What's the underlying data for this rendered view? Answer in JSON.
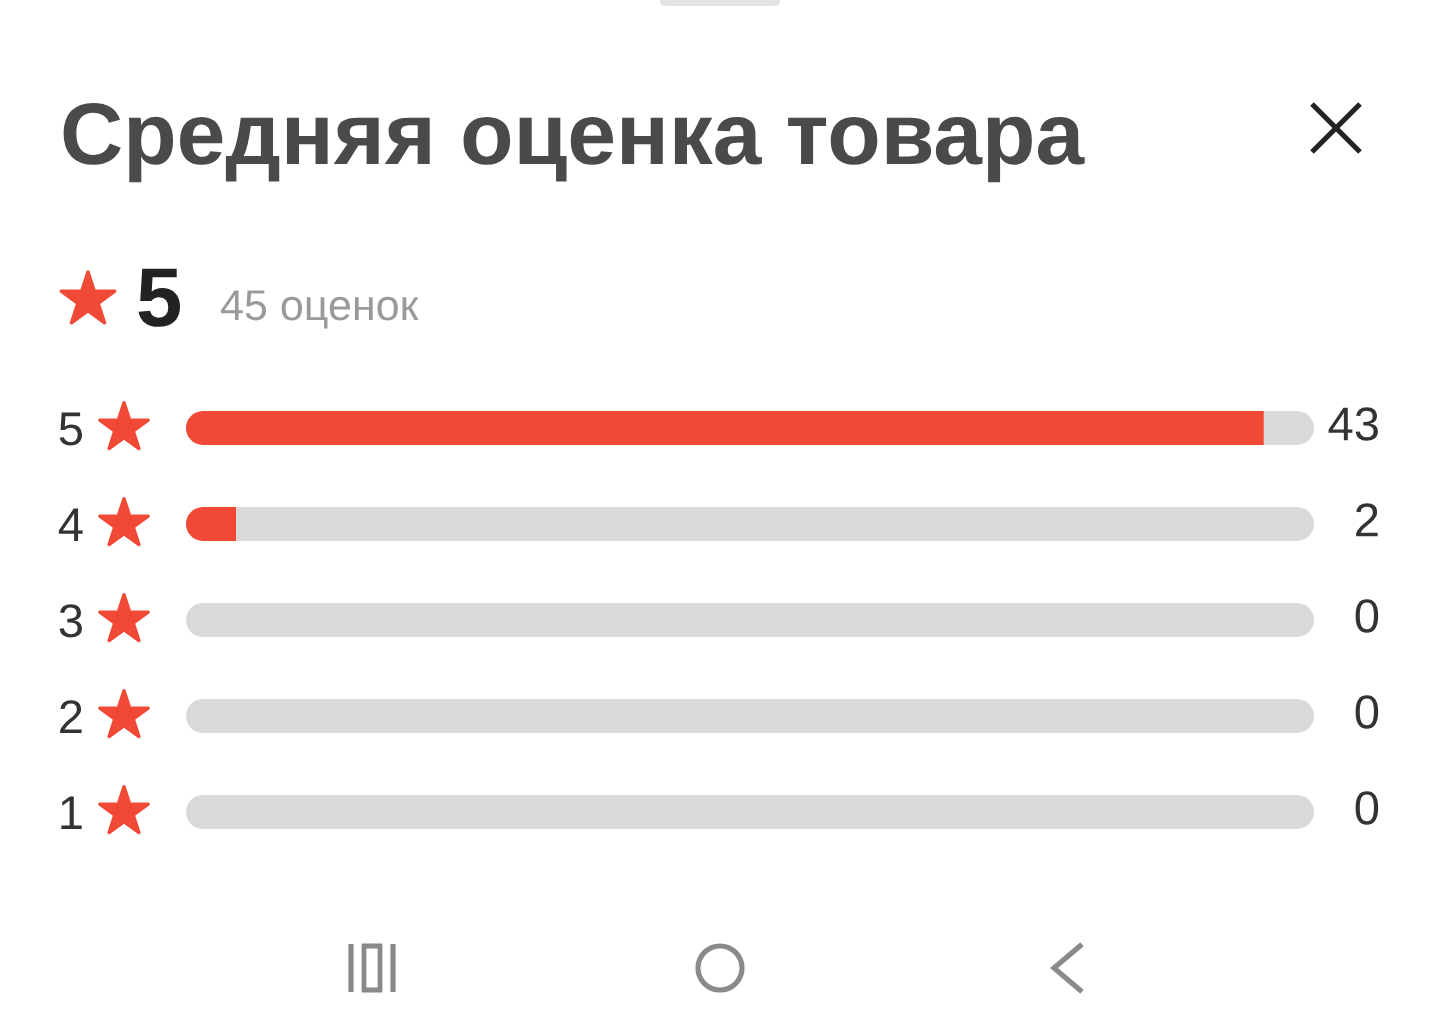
{
  "chart_data": {
    "type": "bar",
    "orientation": "horizontal",
    "stacked": true,
    "title": "Средняя оценка товара",
    "annotations": [
      "5",
      "45 оценок"
    ],
    "categories": [
      "5",
      "4",
      "3",
      "2",
      "1"
    ],
    "series": [
      {
        "color": "#f04a37",
        "values": [
          43,
          2,
          0,
          0,
          0
        ],
        "value_labels": [
          "43",
          "2",
          "0",
          "0",
          "0"
        ]
      },
      {
        "color": "#d9d9d9",
        "values": [
          2,
          43,
          45,
          45,
          45
        ]
      }
    ],
    "xlim": [
      0,
      45
    ],
    "tick_labels": "y"
  }
}
